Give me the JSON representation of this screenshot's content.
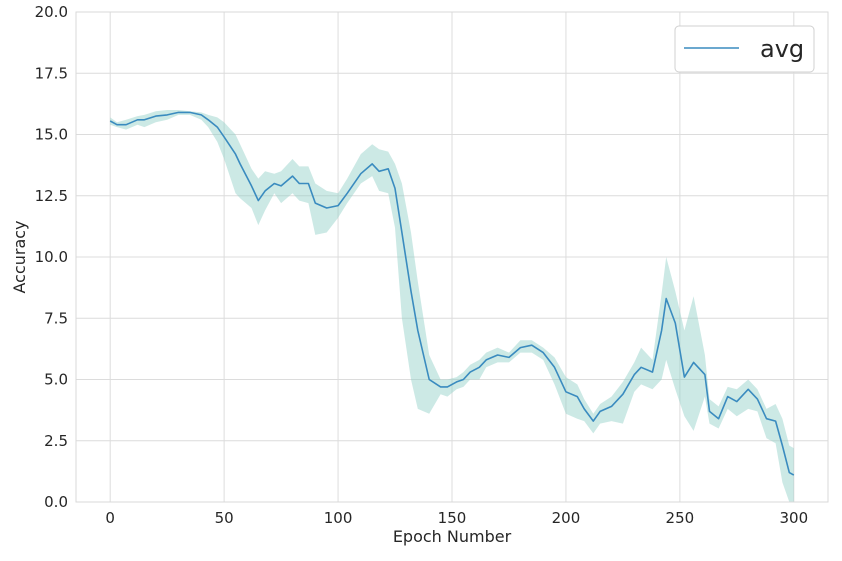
{
  "chart_data": {
    "type": "line",
    "xlabel": "Epoch Number",
    "ylabel": "Accuracy",
    "xlim": [
      -15,
      315
    ],
    "ylim": [
      0,
      20
    ],
    "xticks": [
      "0",
      "50",
      "100",
      "150",
      "200",
      "250",
      "300"
    ],
    "xtick_values": [
      0,
      50,
      100,
      150,
      200,
      250,
      300
    ],
    "yticks": [
      "0.0",
      "2.5",
      "5.0",
      "7.5",
      "10.0",
      "12.5",
      "15.0",
      "17.5",
      "20.0"
    ],
    "ytick_values": [
      0,
      2.5,
      5,
      7.5,
      10,
      12.5,
      15,
      17.5,
      20
    ],
    "grid": true,
    "legend_position": "top-right",
    "colors": {
      "line": "#3a8bbf",
      "band": "#8ecfc5",
      "grid": "#dcdcdc",
      "frame": "#d9d9d9"
    },
    "series": [
      {
        "name": "avg",
        "x": [
          0,
          3,
          7,
          12,
          15,
          20,
          25,
          30,
          35,
          40,
          43,
          47,
          50,
          55,
          57,
          62,
          65,
          68,
          72,
          75,
          80,
          83,
          87,
          90,
          95,
          100,
          104,
          110,
          115,
          118,
          122,
          125,
          128,
          132,
          135,
          140,
          145,
          148,
          152,
          155,
          158,
          162,
          165,
          170,
          175,
          180,
          185,
          190,
          195,
          200,
          205,
          208,
          212,
          215,
          220,
          225,
          230,
          233,
          238,
          242,
          244,
          248,
          252,
          256,
          261,
          263,
          267,
          271,
          275,
          280,
          284,
          288,
          292,
          295,
          298,
          300
        ],
        "y": [
          15.55,
          15.4,
          15.4,
          15.6,
          15.6,
          15.75,
          15.8,
          15.9,
          15.9,
          15.8,
          15.6,
          15.3,
          14.9,
          14.2,
          13.8,
          12.9,
          12.3,
          12.7,
          13.0,
          12.9,
          13.3,
          13.0,
          13.0,
          12.2,
          12.0,
          12.1,
          12.6,
          13.4,
          13.8,
          13.5,
          13.6,
          12.8,
          11.0,
          8.6,
          7.0,
          5.0,
          4.7,
          4.7,
          4.9,
          5.0,
          5.3,
          5.5,
          5.8,
          6.0,
          5.9,
          6.3,
          6.4,
          6.1,
          5.5,
          4.5,
          4.3,
          3.8,
          3.3,
          3.7,
          3.9,
          4.4,
          5.2,
          5.5,
          5.3,
          7.0,
          8.3,
          7.3,
          5.1,
          5.7,
          5.2,
          3.7,
          3.4,
          4.3,
          4.1,
          4.6,
          4.2,
          3.4,
          3.3,
          2.3,
          1.2,
          1.1
        ],
        "lower": [
          15.4,
          15.3,
          15.2,
          15.4,
          15.3,
          15.5,
          15.6,
          15.8,
          15.8,
          15.6,
          15.3,
          14.7,
          14.0,
          12.6,
          12.4,
          12.0,
          11.3,
          11.9,
          12.6,
          12.2,
          12.6,
          12.3,
          12.2,
          10.9,
          11.0,
          11.6,
          12.2,
          13.0,
          13.3,
          12.7,
          12.6,
          11.2,
          7.5,
          5.0,
          3.8,
          3.6,
          4.4,
          4.3,
          4.6,
          4.7,
          5.0,
          5.0,
          5.5,
          5.7,
          5.7,
          6.1,
          6.1,
          5.8,
          4.8,
          3.6,
          3.4,
          3.3,
          2.8,
          3.2,
          3.3,
          3.2,
          4.5,
          4.8,
          4.6,
          5.0,
          5.8,
          4.6,
          3.5,
          2.9,
          4.3,
          3.2,
          3.0,
          3.8,
          3.5,
          3.8,
          3.7,
          2.6,
          2.4,
          0.8,
          0.0,
          0.0
        ],
        "upper": [
          15.7,
          15.5,
          15.6,
          15.75,
          15.8,
          15.95,
          16.0,
          16.0,
          15.95,
          15.9,
          15.8,
          15.7,
          15.5,
          15.0,
          14.6,
          13.6,
          13.2,
          13.5,
          13.4,
          13.5,
          14.0,
          13.7,
          13.7,
          13.0,
          12.7,
          12.6,
          13.2,
          14.2,
          14.6,
          14.4,
          14.3,
          13.8,
          13.0,
          11.0,
          9.0,
          6.0,
          5.0,
          5.0,
          5.1,
          5.3,
          5.6,
          5.8,
          6.1,
          6.3,
          6.1,
          6.6,
          6.6,
          6.3,
          5.9,
          5.1,
          4.8,
          4.2,
          3.6,
          4.0,
          4.3,
          4.9,
          5.7,
          6.3,
          5.8,
          8.5,
          10.0,
          8.6,
          7.0,
          8.4,
          6.0,
          4.2,
          3.9,
          4.7,
          4.6,
          5.0,
          4.6,
          3.8,
          4.0,
          3.4,
          2.3,
          2.2
        ]
      }
    ]
  }
}
